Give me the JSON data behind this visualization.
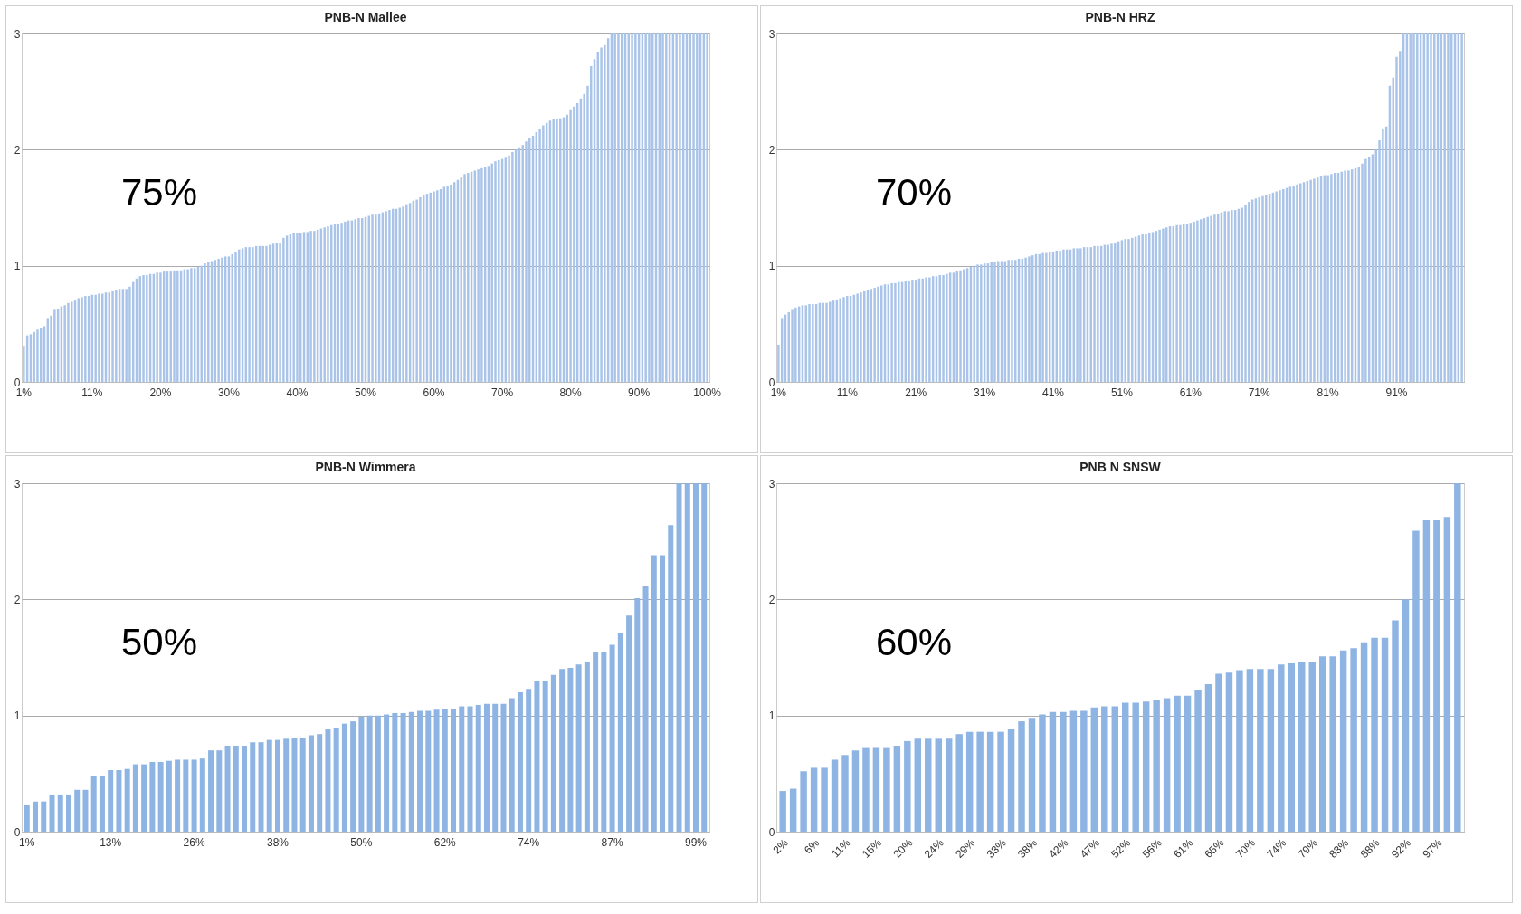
{
  "chart_data": [
    {
      "type": "bar",
      "title": "PNB-N Mallee",
      "color": "#a9c4e8",
      "ylim": [
        0,
        3
      ],
      "yticks": [
        0,
        1,
        2,
        3
      ],
      "grid": "y",
      "annotations": [
        "75%"
      ],
      "categories": [
        "1%",
        null,
        null,
        null,
        null,
        null,
        null,
        null,
        null,
        null,
        null,
        null,
        null,
        null,
        null,
        null,
        null,
        null,
        null,
        null,
        "11%",
        null,
        null,
        null,
        null,
        null,
        null,
        null,
        null,
        null,
        null,
        null,
        null,
        null,
        null,
        null,
        null,
        null,
        null,
        null,
        "20%",
        null,
        null,
        null,
        null,
        null,
        null,
        null,
        null,
        null,
        null,
        null,
        null,
        null,
        null,
        null,
        null,
        null,
        null,
        null,
        "30%",
        null,
        null,
        null,
        null,
        null,
        null,
        null,
        null,
        null,
        null,
        null,
        null,
        null,
        null,
        null,
        null,
        null,
        null,
        null,
        "40%",
        null,
        null,
        null,
        null,
        null,
        null,
        null,
        null,
        null,
        null,
        null,
        null,
        null,
        null,
        null,
        null,
        null,
        null,
        null,
        "50%",
        null,
        null,
        null,
        null,
        null,
        null,
        null,
        null,
        null,
        null,
        null,
        null,
        null,
        null,
        null,
        null,
        null,
        null,
        null,
        "60%",
        null,
        null,
        null,
        null,
        null,
        null,
        null,
        null,
        null,
        null,
        null,
        null,
        null,
        null,
        null,
        null,
        null,
        null,
        null,
        "70%",
        null,
        null,
        null,
        null,
        null,
        null,
        null,
        null,
        null,
        null,
        null,
        null,
        null,
        null,
        null,
        null,
        null,
        null,
        null,
        "80%",
        null,
        null,
        null,
        null,
        null,
        null,
        null,
        null,
        null,
        null,
        null,
        null,
        null,
        null,
        null,
        null,
        null,
        null,
        null,
        "90%",
        null,
        null,
        null,
        null,
        null,
        null,
        null,
        null,
        null,
        null,
        null,
        null,
        null,
        null,
        null,
        null,
        null,
        null,
        null,
        "100%"
      ],
      "values": [
        0.31,
        0.4,
        0.41,
        0.43,
        0.45,
        0.46,
        0.48,
        0.55,
        0.57,
        0.62,
        0.63,
        0.65,
        0.66,
        0.68,
        0.69,
        0.7,
        0.72,
        0.73,
        0.74,
        0.74,
        0.75,
        0.75,
        0.76,
        0.76,
        0.77,
        0.77,
        0.78,
        0.79,
        0.8,
        0.8,
        0.8,
        0.82,
        0.86,
        0.89,
        0.91,
        0.92,
        0.92,
        0.93,
        0.93,
        0.94,
        0.94,
        0.95,
        0.95,
        0.95,
        0.96,
        0.96,
        0.96,
        0.97,
        0.97,
        0.98,
        0.98,
        0.99,
        1.0,
        1.02,
        1.03,
        1.04,
        1.05,
        1.06,
        1.07,
        1.08,
        1.08,
        1.1,
        1.12,
        1.14,
        1.15,
        1.16,
        1.16,
        1.16,
        1.17,
        1.17,
        1.17,
        1.17,
        1.18,
        1.19,
        1.2,
        1.2,
        1.24,
        1.26,
        1.27,
        1.28,
        1.28,
        1.28,
        1.29,
        1.29,
        1.3,
        1.3,
        1.31,
        1.32,
        1.33,
        1.34,
        1.35,
        1.36,
        1.36,
        1.37,
        1.38,
        1.39,
        1.39,
        1.4,
        1.41,
        1.41,
        1.42,
        1.43,
        1.44,
        1.44,
        1.45,
        1.46,
        1.47,
        1.48,
        1.49,
        1.49,
        1.5,
        1.51,
        1.53,
        1.54,
        1.56,
        1.57,
        1.59,
        1.61,
        1.62,
        1.63,
        1.64,
        1.65,
        1.66,
        1.68,
        1.69,
        1.7,
        1.72,
        1.74,
        1.76,
        1.79,
        1.8,
        1.81,
        1.82,
        1.83,
        1.84,
        1.85,
        1.86,
        1.88,
        1.9,
        1.91,
        1.92,
        1.93,
        1.95,
        1.98,
        2.0,
        2.02,
        2.04,
        2.07,
        2.1,
        2.12,
        2.15,
        2.18,
        2.21,
        2.23,
        2.25,
        2.26,
        2.26,
        2.27,
        2.28,
        2.3,
        2.34,
        2.37,
        2.4,
        2.44,
        2.48,
        2.55,
        2.72,
        2.78,
        2.84,
        2.88,
        2.9,
        2.96,
        3,
        3,
        3,
        3,
        3,
        3,
        3,
        3,
        3,
        3,
        3,
        3,
        3,
        3,
        3,
        3,
        3,
        3,
        3,
        3,
        3,
        3,
        3,
        3,
        3,
        3,
        3,
        3,
        3
      ]
    },
    {
      "type": "bar",
      "title": "PNB-N HRZ",
      "color": "#a9c4e8",
      "ylim": [
        0,
        3
      ],
      "yticks": [
        0,
        1,
        2,
        3
      ],
      "grid": "y",
      "annotations": [
        "70%"
      ],
      "categories": [
        "1%",
        null,
        null,
        null,
        null,
        null,
        null,
        null,
        null,
        null,
        null,
        null,
        null,
        null,
        null,
        null,
        null,
        null,
        null,
        null,
        "11%",
        null,
        null,
        null,
        null,
        null,
        null,
        null,
        null,
        null,
        null,
        null,
        null,
        null,
        null,
        null,
        null,
        null,
        null,
        null,
        "21%",
        null,
        null,
        null,
        null,
        null,
        null,
        null,
        null,
        null,
        null,
        null,
        null,
        null,
        null,
        null,
        null,
        null,
        null,
        null,
        "31%",
        null,
        null,
        null,
        null,
        null,
        null,
        null,
        null,
        null,
        null,
        null,
        null,
        null,
        null,
        null,
        null,
        null,
        null,
        null,
        "41%",
        null,
        null,
        null,
        null,
        null,
        null,
        null,
        null,
        null,
        null,
        null,
        null,
        null,
        null,
        null,
        null,
        null,
        null,
        null,
        "51%",
        null,
        null,
        null,
        null,
        null,
        null,
        null,
        null,
        null,
        null,
        null,
        null,
        null,
        null,
        null,
        null,
        null,
        null,
        null,
        "61%",
        null,
        null,
        null,
        null,
        null,
        null,
        null,
        null,
        null,
        null,
        null,
        null,
        null,
        null,
        null,
        null,
        null,
        null,
        null,
        "71%",
        null,
        null,
        null,
        null,
        null,
        null,
        null,
        null,
        null,
        null,
        null,
        null,
        null,
        null,
        null,
        null,
        null,
        null,
        null,
        "81%",
        null,
        null,
        null,
        null,
        null,
        null,
        null,
        null,
        null,
        null,
        null,
        null,
        null,
        null,
        null,
        null,
        null,
        null,
        null,
        "91%",
        null,
        null,
        null,
        null,
        null,
        null,
        null,
        null,
        null,
        null,
        null,
        null,
        null,
        null,
        null,
        null,
        null,
        null,
        null
      ],
      "values": [
        0.32,
        0.55,
        0.58,
        0.6,
        0.62,
        0.64,
        0.65,
        0.66,
        0.66,
        0.67,
        0.67,
        0.67,
        0.68,
        0.68,
        0.68,
        0.69,
        0.7,
        0.71,
        0.72,
        0.73,
        0.74,
        0.74,
        0.75,
        0.76,
        0.77,
        0.78,
        0.79,
        0.8,
        0.81,
        0.82,
        0.83,
        0.84,
        0.84,
        0.85,
        0.85,
        0.86,
        0.86,
        0.87,
        0.87,
        0.88,
        0.88,
        0.89,
        0.89,
        0.9,
        0.9,
        0.91,
        0.91,
        0.92,
        0.92,
        0.93,
        0.94,
        0.94,
        0.95,
        0.96,
        0.97,
        0.98,
        0.99,
        1.0,
        1.01,
        1.01,
        1.02,
        1.02,
        1.03,
        1.03,
        1.04,
        1.04,
        1.04,
        1.05,
        1.05,
        1.05,
        1.06,
        1.06,
        1.07,
        1.08,
        1.09,
        1.1,
        1.1,
        1.11,
        1.11,
        1.12,
        1.12,
        1.13,
        1.13,
        1.14,
        1.14,
        1.14,
        1.15,
        1.15,
        1.15,
        1.16,
        1.16,
        1.16,
        1.17,
        1.17,
        1.17,
        1.18,
        1.18,
        1.19,
        1.2,
        1.21,
        1.22,
        1.23,
        1.23,
        1.24,
        1.25,
        1.26,
        1.27,
        1.27,
        1.28,
        1.29,
        1.3,
        1.31,
        1.32,
        1.33,
        1.34,
        1.34,
        1.35,
        1.35,
        1.36,
        1.36,
        1.37,
        1.38,
        1.39,
        1.4,
        1.41,
        1.42,
        1.43,
        1.44,
        1.45,
        1.46,
        1.47,
        1.47,
        1.48,
        1.48,
        1.49,
        1.5,
        1.52,
        1.55,
        1.57,
        1.58,
        1.59,
        1.6,
        1.61,
        1.62,
        1.63,
        1.64,
        1.65,
        1.66,
        1.67,
        1.68,
        1.69,
        1.7,
        1.71,
        1.72,
        1.73,
        1.74,
        1.75,
        1.76,
        1.77,
        1.78,
        1.78,
        1.79,
        1.8,
        1.8,
        1.81,
        1.82,
        1.82,
        1.83,
        1.84,
        1.85,
        1.88,
        1.92,
        1.94,
        1.96,
        2.0,
        2.08,
        2.18,
        2.2,
        2.55,
        2.62,
        2.8,
        2.85,
        3,
        3,
        3,
        3,
        3,
        3,
        3,
        3,
        3,
        3,
        3,
        3,
        3,
        3,
        3,
        3,
        3,
        3
      ]
    },
    {
      "type": "bar",
      "title": "PNB-N Wimmera",
      "color": "#8eb4e3",
      "ylim": [
        0,
        3
      ],
      "yticks": [
        0,
        1,
        2,
        3
      ],
      "grid": "y",
      "annotations": [
        "50%"
      ],
      "categories": [
        "1%",
        null,
        null,
        null,
        null,
        null,
        null,
        null,
        null,
        null,
        "13%",
        null,
        null,
        null,
        null,
        null,
        null,
        null,
        null,
        null,
        "26%",
        null,
        null,
        null,
        null,
        null,
        null,
        null,
        null,
        null,
        "38%",
        null,
        null,
        null,
        null,
        null,
        null,
        null,
        null,
        null,
        "50%",
        null,
        null,
        null,
        null,
        null,
        null,
        null,
        null,
        null,
        "62%",
        null,
        null,
        null,
        null,
        null,
        null,
        null,
        null,
        null,
        "74%",
        null,
        null,
        null,
        null,
        null,
        null,
        null,
        null,
        null,
        "87%",
        null,
        null,
        null,
        null,
        null,
        null,
        null,
        null,
        null,
        "99%",
        null
      ],
      "values": [
        0.23,
        0.26,
        0.26,
        0.32,
        0.32,
        0.32,
        0.36,
        0.36,
        0.48,
        0.48,
        0.53,
        0.53,
        0.54,
        0.58,
        0.58,
        0.6,
        0.6,
        0.61,
        0.62,
        0.62,
        0.62,
        0.63,
        0.7,
        0.7,
        0.74,
        0.74,
        0.74,
        0.77,
        0.77,
        0.79,
        0.79,
        0.8,
        0.81,
        0.81,
        0.83,
        0.84,
        0.88,
        0.89,
        0.93,
        0.95,
        0.99,
        1.0,
        1.0,
        1.01,
        1.02,
        1.02,
        1.03,
        1.04,
        1.04,
        1.05,
        1.06,
        1.06,
        1.08,
        1.08,
        1.09,
        1.1,
        1.1,
        1.1,
        1.15,
        1.2,
        1.23,
        1.3,
        1.3,
        1.35,
        1.4,
        1.41,
        1.44,
        1.46,
        1.55,
        1.55,
        1.61,
        1.71,
        1.86,
        2.01,
        2.12,
        2.38,
        2.38,
        2.64,
        3,
        3,
        3,
        3
      ]
    },
    {
      "type": "bar",
      "title": "PNB N SNSW",
      "color": "#8eb4e3",
      "ylim": [
        0,
        3
      ],
      "yticks": [
        0,
        1,
        2,
        3
      ],
      "grid": "y",
      "annotations": [
        "60%"
      ],
      "categories": [
        "2%",
        null,
        null,
        "6%",
        null,
        null,
        "11%",
        null,
        null,
        "15%",
        null,
        null,
        "20%",
        null,
        null,
        "24%",
        null,
        null,
        "29%",
        null,
        null,
        "33%",
        null,
        null,
        "38%",
        null,
        null,
        "42%",
        null,
        null,
        "47%",
        null,
        null,
        "52%",
        null,
        null,
        "56%",
        null,
        null,
        "61%",
        null,
        null,
        "65%",
        null,
        null,
        "70%",
        null,
        null,
        "74%",
        null,
        null,
        "79%",
        null,
        null,
        "83%",
        null,
        null,
        "88%",
        null,
        null,
        "92%",
        null,
        null,
        "97%",
        null,
        null
      ],
      "values": [
        0.35,
        0.37,
        0.52,
        0.55,
        0.55,
        0.62,
        0.66,
        0.7,
        0.72,
        0.72,
        0.72,
        0.74,
        0.78,
        0.8,
        0.8,
        0.8,
        0.8,
        0.84,
        0.86,
        0.86,
        0.86,
        0.86,
        0.88,
        0.95,
        0.98,
        1.01,
        1.03,
        1.03,
        1.04,
        1.04,
        1.07,
        1.08,
        1.08,
        1.11,
        1.11,
        1.12,
        1.13,
        1.15,
        1.17,
        1.17,
        1.22,
        1.27,
        1.36,
        1.37,
        1.39,
        1.4,
        1.4,
        1.4,
        1.44,
        1.45,
        1.46,
        1.46,
        1.51,
        1.51,
        1.56,
        1.58,
        1.63,
        1.67,
        1.67,
        1.82,
        2.0,
        2.59,
        2.68,
        2.68,
        2.71,
        3.0
      ]
    }
  ]
}
